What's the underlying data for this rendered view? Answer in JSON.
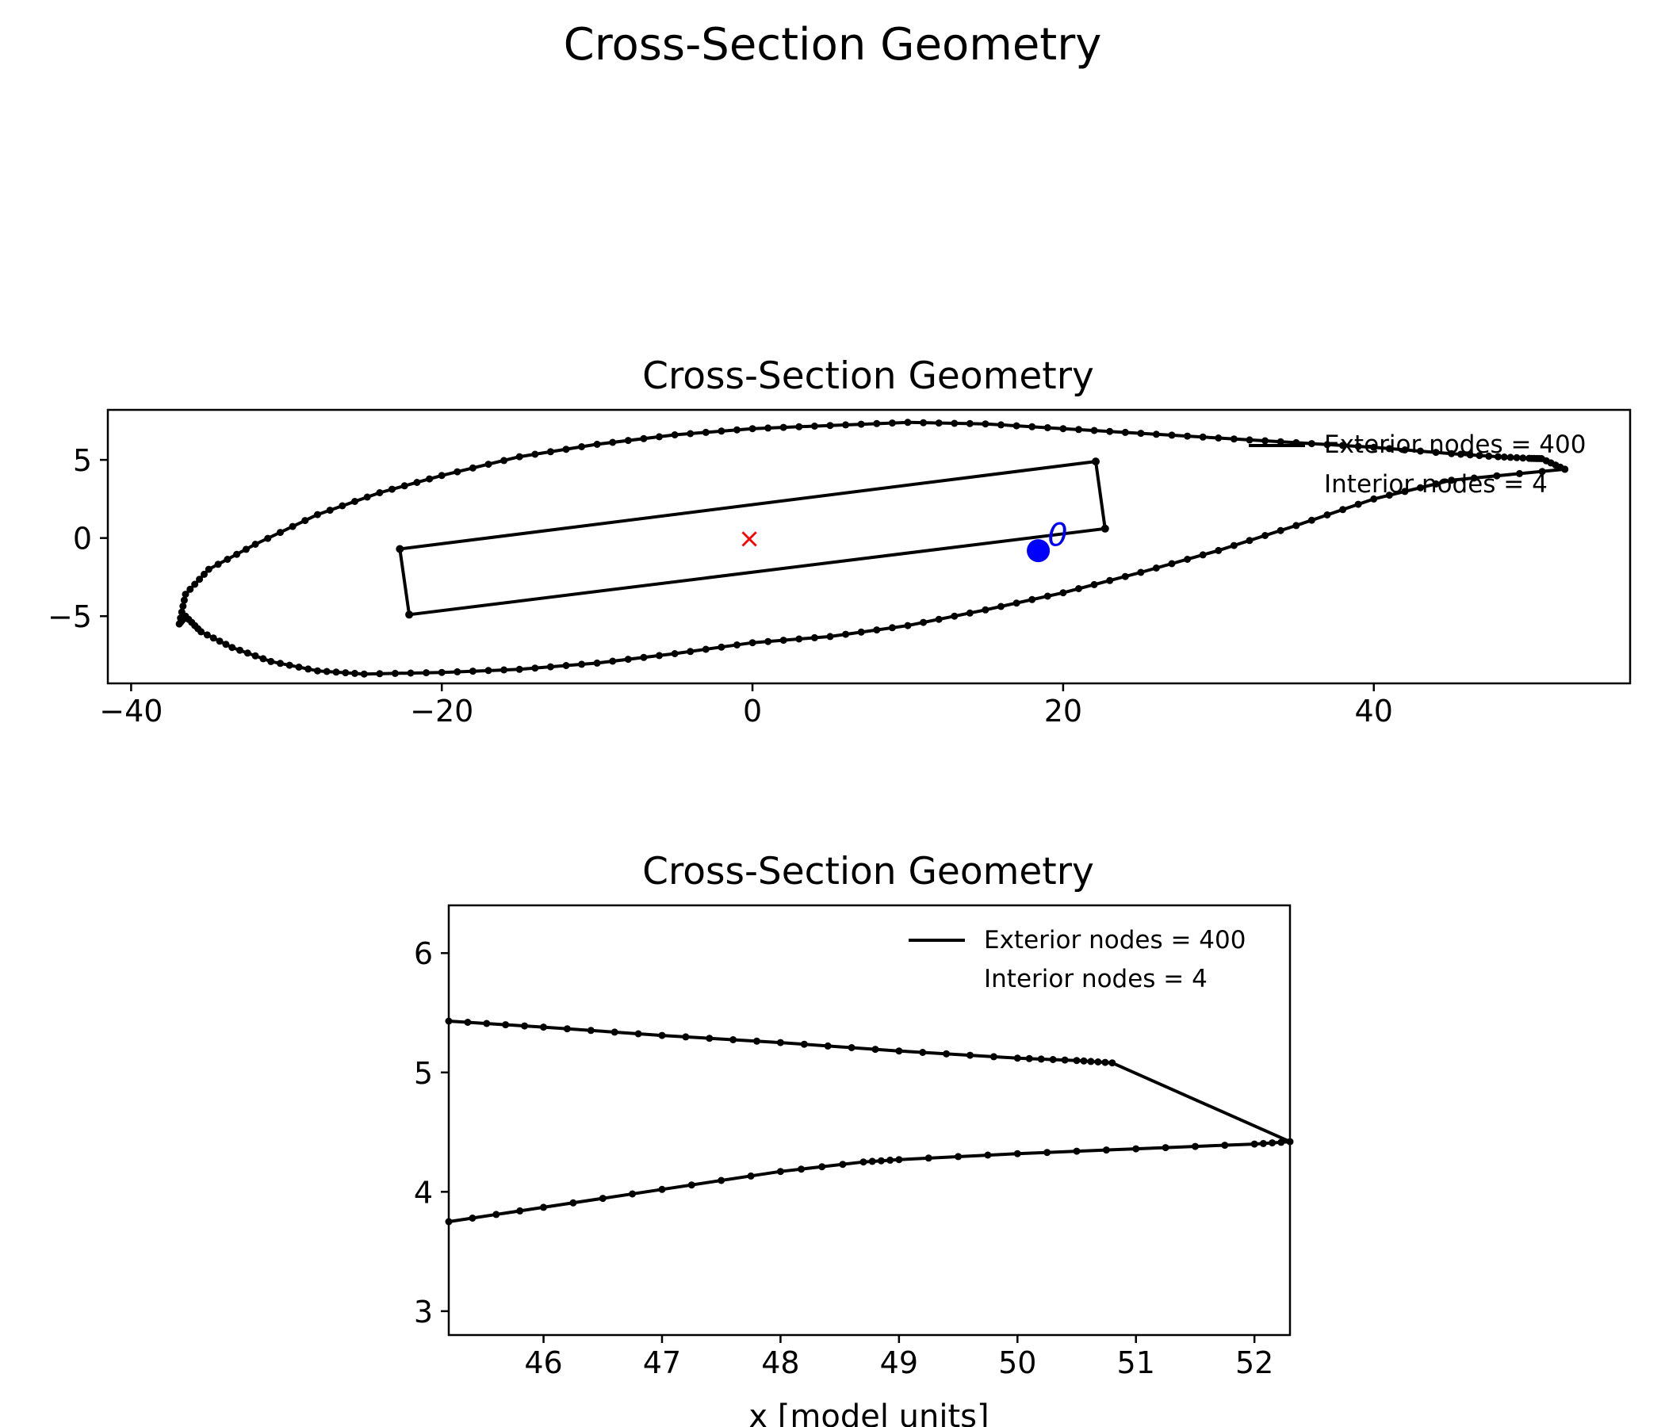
{
  "figure": {
    "suptitle": "Cross-Section Geometry"
  },
  "chart_data": [
    {
      "type": "line",
      "title": "Cross-Section Geometry",
      "xlabel": "",
      "ylabel": "",
      "xlim": [
        -41.5,
        56.5
      ],
      "ylim": [
        -9.3,
        8.2
      ],
      "xticks": [
        -40,
        -20,
        0,
        20,
        40
      ],
      "yticks": [
        -5,
        0,
        5
      ],
      "legend": {
        "placement": "top-right",
        "entries": [
          "Exterior nodes = 400",
          "Interior nodes = 4"
        ]
      },
      "exterior_outline": {
        "name": "Exterior nodes = 400",
        "count": 400,
        "x": [
          52.3,
          45.0,
          40.0,
          35.0,
          30.0,
          25.0,
          20.0,
          15.0,
          10.0,
          5.0,
          0.0,
          -5.0,
          -10.0,
          -15.0,
          -20.0,
          -25.0,
          -28.0,
          -31.0,
          -33.5,
          -35.5,
          -36.5,
          -36.9,
          -36.5,
          -35.0,
          -32.0,
          -28.0,
          -24.0,
          -20.0,
          -15.0,
          -10.0,
          -5.0,
          0.0,
          5.0,
          10.0,
          15.0,
          20.0,
          25.0,
          30.0,
          35.0,
          40.0,
          45.0,
          48.0,
          50.0,
          50.8,
          52.3
        ],
        "y": [
          4.4,
          3.7,
          2.5,
          0.8,
          -0.8,
          -2.2,
          -3.5,
          -4.6,
          -5.6,
          -6.3,
          -6.7,
          -7.4,
          -8.0,
          -8.4,
          -8.6,
          -8.7,
          -8.5,
          -7.9,
          -7.0,
          -6.0,
          -5.0,
          -5.5,
          -3.6,
          -2.0,
          -0.4,
          1.5,
          2.9,
          4.0,
          5.2,
          6.0,
          6.6,
          7.0,
          7.2,
          7.4,
          7.3,
          7.0,
          6.7,
          6.4,
          6.1,
          5.8,
          5.4,
          5.2,
          5.1,
          5.08,
          4.4
        ]
      },
      "interior_box": {
        "name": "Interior nodes = 4",
        "count": 4,
        "x": [
          -22.7,
          22.1,
          22.7,
          -22.1
        ],
        "y": [
          -0.7,
          4.9,
          0.6,
          -4.9
        ]
      },
      "markers": [
        {
          "label": "centroid",
          "symbol": "×",
          "x": -0.2,
          "y": 0.0,
          "color": "#ff0000"
        },
        {
          "label": "point",
          "symbol": "●",
          "x": 18.4,
          "y": -0.7,
          "color": "#0000ff"
        }
      ],
      "annotation": {
        "text": "0",
        "x": 19.0,
        "y": 0.1,
        "color": "#0000ff"
      }
    },
    {
      "type": "line",
      "title": "Cross-Section Geometry",
      "xlabel": "x [model units]",
      "ylabel": "",
      "xlim": [
        45.2,
        52.3
      ],
      "ylim": [
        2.8,
        6.4
      ],
      "xticks": [
        46,
        47,
        48,
        49,
        50,
        51,
        52
      ],
      "yticks": [
        3,
        4,
        5,
        6
      ],
      "legend": {
        "placement": "top-right",
        "entries": [
          "Exterior nodes = 400",
          "Interior nodes = 4"
        ]
      },
      "upper_surface": {
        "x": [
          45.2,
          46.0,
          47.0,
          48.0,
          49.0,
          50.0,
          50.5,
          50.8
        ],
        "y": [
          5.43,
          5.38,
          5.31,
          5.25,
          5.18,
          5.12,
          5.1,
          5.08
        ]
      },
      "trailing_edge": {
        "x": [
          50.8,
          52.3
        ],
        "y": [
          5.08,
          4.42
        ]
      },
      "lower_surface": {
        "x": [
          45.2,
          46.0,
          47.0,
          48.0,
          48.7,
          49.0,
          50.0,
          51.0,
          52.0,
          52.3
        ],
        "y": [
          3.75,
          3.87,
          4.02,
          4.17,
          4.25,
          4.27,
          4.32,
          4.36,
          4.4,
          4.42
        ]
      }
    }
  ]
}
